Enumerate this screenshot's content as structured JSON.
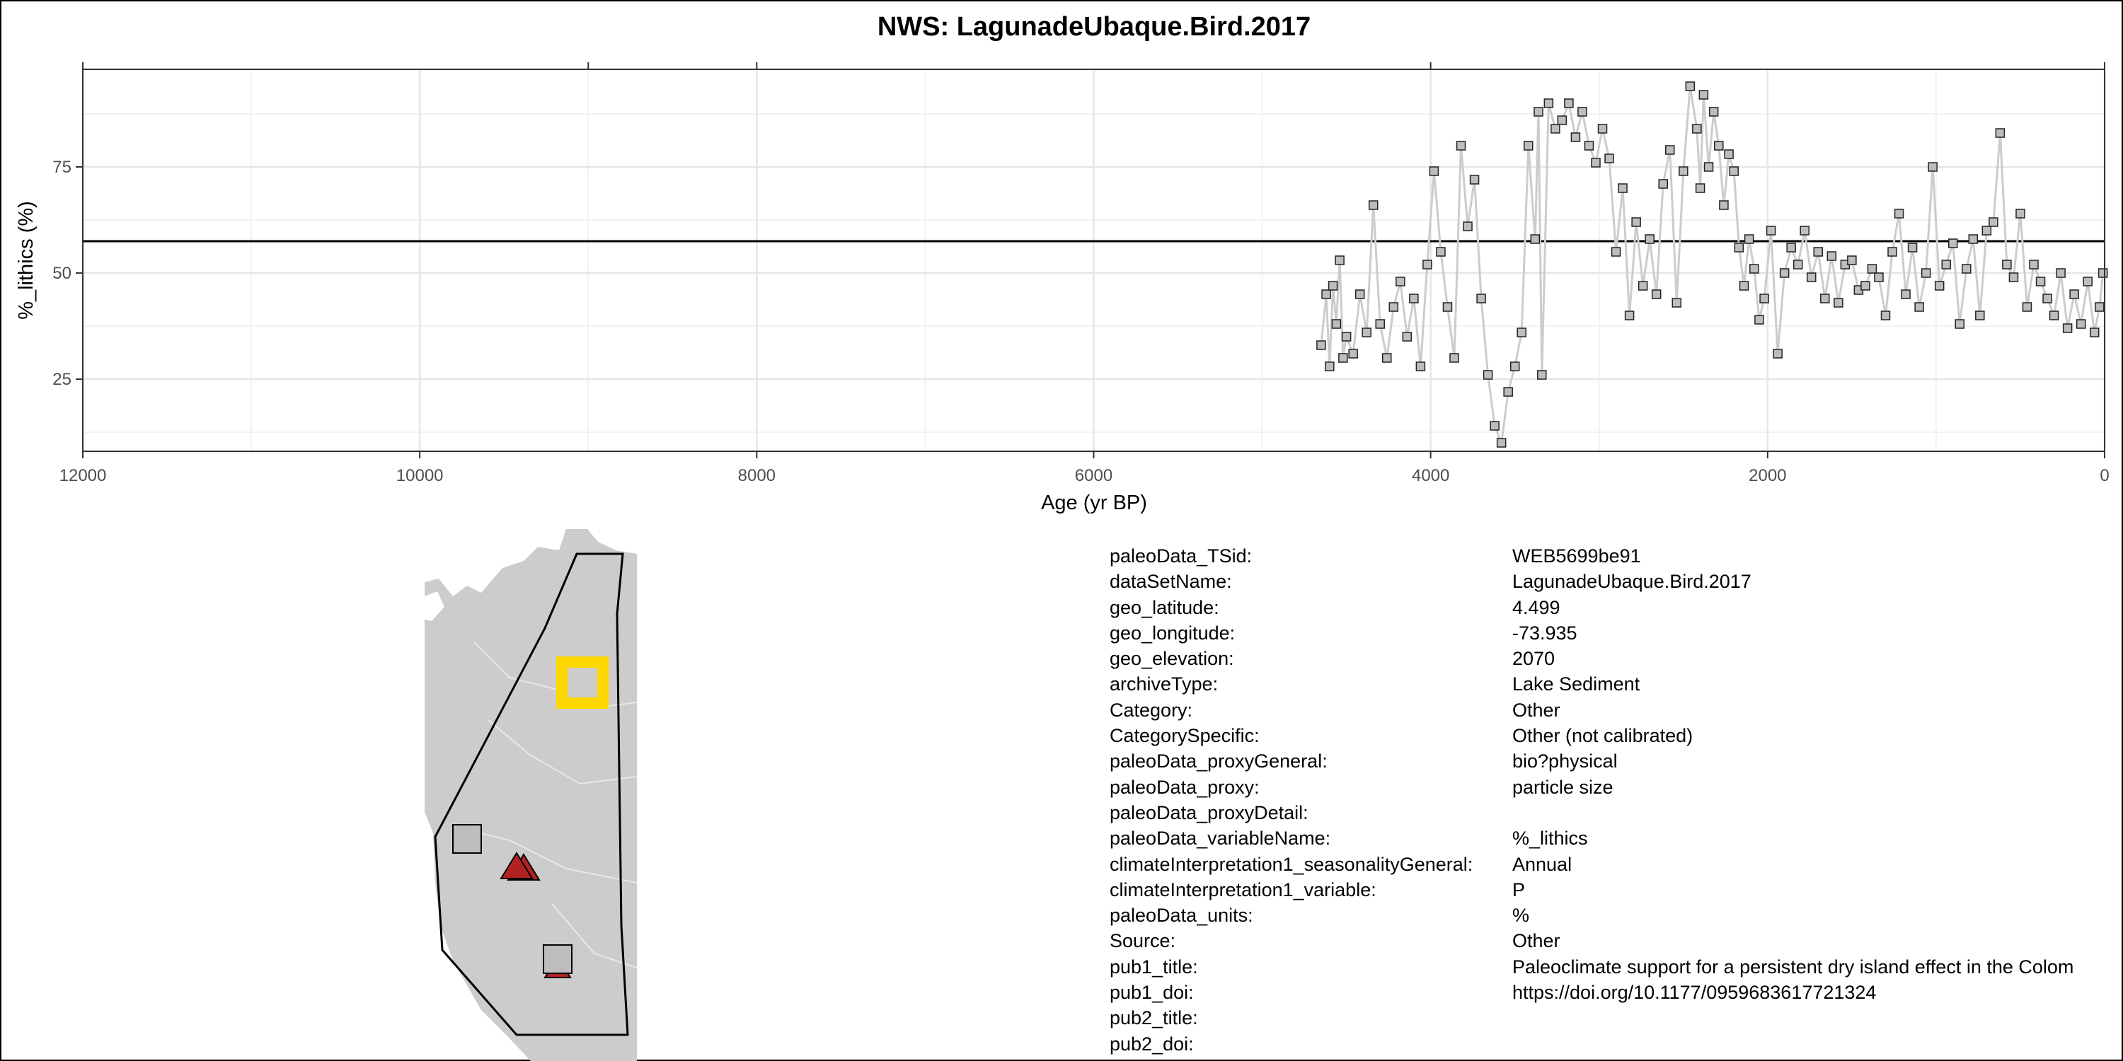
{
  "chart_data": {
    "type": "scatter",
    "title": "NWS: LagunadeUbaque.Bird.2017",
    "xlabel": "Age (yr BP)",
    "ylabel": "%_lithics (%)",
    "x_reversed": true,
    "xlim": [
      12000,
      0
    ],
    "ylim": [
      8,
      98
    ],
    "x_ticks": [
      12000,
      10000,
      8000,
      6000,
      4000,
      2000,
      0
    ],
    "y_ticks": [
      25,
      50,
      75
    ],
    "mean_line_y": 57.5,
    "grid": true,
    "series": [
      {
        "marker": "square",
        "marker_color": "#bdbdbd",
        "line_color": "#cccccc",
        "x": [
          4650,
          4620,
          4600,
          4580,
          4560,
          4540,
          4520,
          4500,
          4460,
          4420,
          4380,
          4340,
          4300,
          4260,
          4220,
          4180,
          4140,
          4100,
          4060,
          4020,
          3980,
          3940,
          3900,
          3860,
          3820,
          3780,
          3740,
          3700,
          3660,
          3620,
          3580,
          3540,
          3500,
          3460,
          3420,
          3380,
          3360,
          3340,
          3300,
          3260,
          3220,
          3180,
          3140,
          3100,
          3060,
          3020,
          2980,
          2940,
          2900,
          2860,
          2820,
          2780,
          2740,
          2700,
          2660,
          2620,
          2580,
          2540,
          2500,
          2460,
          2420,
          2400,
          2380,
          2350,
          2320,
          2290,
          2260,
          2230,
          2200,
          2170,
          2140,
          2110,
          2080,
          2050,
          2020,
          1980,
          1940,
          1900,
          1860,
          1820,
          1780,
          1740,
          1700,
          1660,
          1620,
          1580,
          1540,
          1500,
          1460,
          1420,
          1380,
          1340,
          1300,
          1260,
          1220,
          1180,
          1140,
          1100,
          1060,
          1020,
          980,
          940,
          900,
          860,
          820,
          780,
          740,
          700,
          660,
          620,
          580,
          540,
          500,
          460,
          420,
          380,
          340,
          300,
          260,
          220,
          180,
          140,
          100,
          60,
          30,
          10
        ],
        "y": [
          33,
          45,
          28,
          47,
          38,
          53,
          30,
          35,
          31,
          45,
          36,
          66,
          38,
          30,
          42,
          48,
          35,
          44,
          28,
          52,
          74,
          55,
          42,
          30,
          80,
          61,
          72,
          44,
          26,
          14,
          10,
          22,
          28,
          36,
          80,
          58,
          88,
          26,
          90,
          84,
          86,
          90,
          82,
          88,
          80,
          76,
          84,
          77,
          55,
          70,
          40,
          62,
          47,
          58,
          45,
          71,
          79,
          43,
          74,
          94,
          84,
          70,
          92,
          75,
          88,
          80,
          66,
          78,
          74,
          56,
          47,
          58,
          51,
          39,
          44,
          60,
          31,
          50,
          56,
          52,
          60,
          49,
          55,
          44,
          54,
          43,
          52,
          53,
          46,
          47,
          51,
          49,
          40,
          55,
          64,
          45,
          56,
          42,
          50,
          75,
          47,
          52,
          57,
          38,
          51,
          58,
          40,
          60,
          62,
          83,
          52,
          49,
          64,
          42,
          52,
          48,
          44,
          40,
          50,
          37,
          45,
          38,
          48,
          36,
          42,
          50
        ]
      }
    ]
  },
  "map": {
    "site_marker_color": "#ffd700",
    "triangle_color": "#b22222",
    "square_color": "#bdbdbd",
    "land_color": "#cccccc"
  },
  "metadata": [
    {
      "key": "paleoData_TSid:",
      "value": "WEB5699be91"
    },
    {
      "key": "dataSetName:",
      "value": "LagunadeUbaque.Bird.2017"
    },
    {
      "key": "geo_latitude:",
      "value": "4.499"
    },
    {
      "key": "geo_longitude:",
      "value": "-73.935"
    },
    {
      "key": "geo_elevation:",
      "value": "2070"
    },
    {
      "key": "archiveType:",
      "value": "Lake Sediment"
    },
    {
      "key": "Category:",
      "value": "Other"
    },
    {
      "key": "CategorySpecific:",
      "value": "Other (not calibrated)"
    },
    {
      "key": "paleoData_proxyGeneral:",
      "value": "bio?physical"
    },
    {
      "key": "paleoData_proxy:",
      "value": "particle size"
    },
    {
      "key": "paleoData_proxyDetail:",
      "value": ""
    },
    {
      "key": "paleoData_variableName:",
      "value": "%_lithics"
    },
    {
      "key": "climateInterpretation1_seasonalityGeneral:",
      "value": "Annual"
    },
    {
      "key": "climateInterpretation1_variable:",
      "value": "P"
    },
    {
      "key": "paleoData_units:",
      "value": "%"
    },
    {
      "key": "Source:",
      "value": "Other"
    },
    {
      "key": "pub1_title:",
      "value": "Paleoclimate support for a persistent dry island effect in the Colom"
    },
    {
      "key": "pub1_doi:",
      "value": "https://doi.org/10.1177/0959683617721324"
    },
    {
      "key": "pub2_title:",
      "value": ""
    },
    {
      "key": "pub2_doi:",
      "value": ""
    }
  ]
}
